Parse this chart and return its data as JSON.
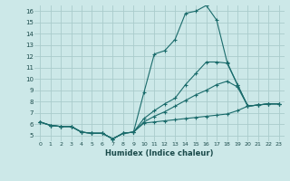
{
  "xlabel": "Humidex (Indice chaleur)",
  "bg_color": "#cce8e8",
  "grid_color": "#aacccc",
  "line_color": "#1a6b6b",
  "xlim": [
    -0.5,
    23.5
  ],
  "ylim": [
    4.5,
    16.5
  ],
  "x": [
    0,
    1,
    2,
    3,
    4,
    5,
    6,
    7,
    8,
    9,
    10,
    11,
    12,
    13,
    14,
    15,
    16,
    17,
    18,
    19,
    20,
    21,
    22,
    23
  ],
  "series1": [
    6.2,
    5.9,
    5.8,
    5.8,
    5.3,
    5.2,
    5.2,
    4.7,
    5.2,
    5.3,
    6.1,
    6.2,
    6.3,
    6.4,
    6.5,
    6.6,
    6.7,
    6.8,
    6.9,
    7.2,
    7.6,
    7.7,
    7.8,
    7.8
  ],
  "series2": [
    6.2,
    5.9,
    5.8,
    5.8,
    5.3,
    5.2,
    5.2,
    4.7,
    5.2,
    5.3,
    8.8,
    12.2,
    12.5,
    13.5,
    15.8,
    16.0,
    16.5,
    15.2,
    11.5,
    9.5,
    7.6,
    7.7,
    7.8,
    7.8
  ],
  "series3": [
    6.2,
    5.9,
    5.8,
    5.8,
    5.3,
    5.2,
    5.2,
    4.7,
    5.2,
    5.3,
    6.5,
    7.2,
    7.8,
    8.3,
    9.5,
    10.5,
    11.5,
    11.5,
    11.4,
    9.5,
    7.6,
    7.7,
    7.8,
    7.8
  ],
  "series4": [
    6.2,
    5.9,
    5.8,
    5.8,
    5.3,
    5.2,
    5.2,
    4.7,
    5.2,
    5.3,
    6.2,
    6.7,
    7.1,
    7.6,
    8.1,
    8.6,
    9.0,
    9.5,
    9.8,
    9.3,
    7.6,
    7.7,
    7.8,
    7.8
  ],
  "yticks": [
    5,
    6,
    7,
    8,
    9,
    10,
    11,
    12,
    13,
    14,
    15,
    16
  ],
  "xticks": [
    0,
    1,
    2,
    3,
    4,
    5,
    6,
    7,
    8,
    9,
    10,
    11,
    12,
    13,
    14,
    15,
    16,
    17,
    18,
    19,
    20,
    21,
    22,
    23
  ]
}
